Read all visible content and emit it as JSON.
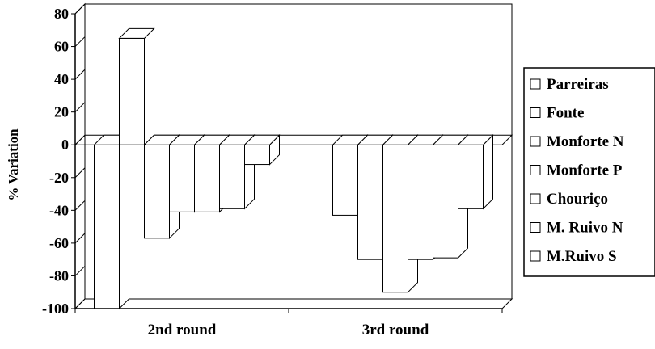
{
  "chart_data": {
    "type": "bar",
    "style": "3d-clustered",
    "title": "",
    "xlabel": "",
    "ylabel": "% Variation",
    "ylim": [
      -100,
      80
    ],
    "yticks": [
      80,
      60,
      40,
      20,
      0,
      -20,
      -40,
      -60,
      -80,
      -100
    ],
    "grid": true,
    "legend_position": "right",
    "fill_color": "#ffffff",
    "stroke_color": "#000000",
    "categories": [
      "2nd round",
      "3rd round"
    ],
    "series": [
      {
        "name": "Parreiras",
        "values": [
          -100,
          0
        ]
      },
      {
        "name": "Fonte",
        "values": [
          65,
          -43
        ]
      },
      {
        "name": "Monforte N",
        "values": [
          -57,
          -70
        ]
      },
      {
        "name": "Monforte P",
        "values": [
          -41,
          -90
        ]
      },
      {
        "name": "Chouriço",
        "values": [
          -41,
          -70
        ]
      },
      {
        "name": "M. Ruivo N",
        "values": [
          -39,
          -69
        ]
      },
      {
        "name": "M.Ruivo S",
        "values": [
          -12,
          -39
        ]
      }
    ]
  }
}
